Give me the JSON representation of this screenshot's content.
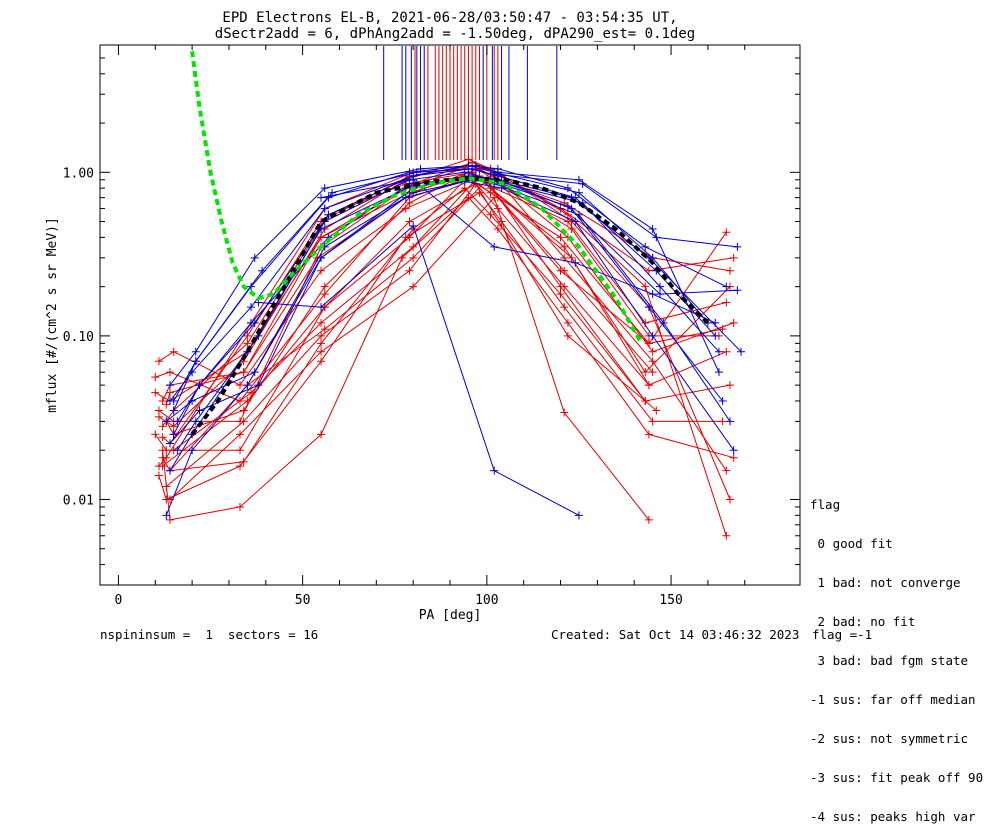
{
  "chart_data": {
    "type": "line",
    "title": "EPD Electrons EL-B, 2021-06-28/03:50:47 - 03:54:35 UT,",
    "subtitle": "dSectr2add = 6, dPhAng2add = -1.50deg, dPA290_est=   0.1deg",
    "xlabel": "PA [deg]",
    "ylabel": "mflux [#/(cm^2 s sr MeV)]",
    "xlim": [
      -5,
      185
    ],
    "ylim": [
      0.003,
      6.0
    ],
    "yscale": "log",
    "xticks": [
      0,
      50,
      100,
      150
    ],
    "yticks": [
      {
        "v": 0.01,
        "label": "0.01"
      },
      {
        "v": 0.1,
        "label": "0.10"
      },
      {
        "v": 1.0,
        "label": "1.00"
      }
    ],
    "colors": {
      "red": "#e60000",
      "blue": "#0000cc",
      "green": "#00e600",
      "black": "#000000"
    },
    "blue_series": [
      {
        "x": [
          14,
          20,
          36,
          56,
          80,
          95,
          102,
          125,
          145,
          160
        ],
        "y": [
          0.04,
          0.06,
          0.15,
          0.6,
          0.95,
          1.1,
          1.0,
          0.75,
          0.3,
          0.12
        ]
      },
      {
        "x": [
          15,
          22,
          37,
          57,
          80,
          96,
          103,
          124,
          146,
          162
        ],
        "y": [
          0.025,
          0.05,
          0.12,
          0.55,
          0.95,
          1.05,
          0.95,
          0.7,
          0.25,
          0.1
        ]
      },
      {
        "x": [
          16,
          21,
          38,
          56,
          79,
          94,
          101,
          126,
          147,
          163
        ],
        "y": [
          0.02,
          0.03,
          0.1,
          0.5,
          0.9,
          1.0,
          0.9,
          0.65,
          0.2,
          0.08
        ]
      },
      {
        "x": [
          14,
          20,
          35,
          55,
          81,
          97,
          104,
          123,
          144,
          164
        ],
        "y": [
          0.015,
          0.025,
          0.08,
          0.45,
          0.85,
          0.95,
          0.88,
          0.6,
          0.15,
          0.04
        ]
      },
      {
        "x": [
          15,
          21,
          36,
          57,
          79,
          95,
          103,
          122,
          143,
          165
        ],
        "y": [
          0.035,
          0.07,
          0.2,
          0.7,
          1.0,
          1.1,
          1.05,
          0.8,
          0.35,
          0.2
        ]
      },
      {
        "x": [
          13,
          20,
          37,
          56,
          80,
          96,
          102,
          125,
          148,
          166
        ],
        "y": [
          0.03,
          0.04,
          0.06,
          0.35,
          0.75,
          0.9,
          0.85,
          0.55,
          0.12,
          0.03
        ]
      },
      {
        "x": [
          14,
          22,
          38,
          55,
          78,
          94,
          104,
          124,
          145,
          167
        ],
        "y": [
          0.022,
          0.035,
          0.05,
          0.3,
          0.7,
          0.88,
          0.8,
          0.5,
          0.1,
          0.02
        ]
      },
      {
        "x": [
          15,
          21,
          39,
          58,
          81,
          95,
          101,
          126,
          146,
          168
        ],
        "y": [
          0.04,
          0.07,
          0.25,
          0.75,
          1.0,
          1.05,
          0.98,
          0.85,
          0.4,
          0.35
        ]
      },
      {
        "x": [
          13,
          20,
          35,
          55,
          80,
          95,
          103,
          123,
          144,
          169
        ],
        "y": [
          0.008,
          0.02,
          0.05,
          0.3,
          0.8,
          0.95,
          0.9,
          0.7,
          0.3,
          0.08
        ]
      },
      {
        "x": [
          16,
          22,
          36,
          57,
          79,
          96,
          102,
          122,
          147,
          168
        ],
        "y": [
          0.03,
          0.05,
          0.12,
          0.4,
          0.85,
          0.92,
          0.88,
          0.62,
          0.18,
          0.19
        ]
      },
      {
        "x": [
          14,
          21,
          37,
          56,
          82,
          97,
          103,
          125,
          145,
          163
        ],
        "y": [
          0.05,
          0.08,
          0.3,
          0.8,
          1.05,
          1.1,
          1.0,
          0.9,
          0.45,
          0.06
        ]
      },
      {
        "x": [
          38,
          55,
          80,
          102,
          125
        ],
        "y": [
          0.16,
          0.15,
          0.47,
          0.015,
          0.008
        ]
      },
      {
        "x": [
          55,
          80,
          102,
          124,
          145,
          162
        ],
        "y": [
          0.7,
          0.9,
          0.35,
          0.28,
          0.18,
          0.12
        ]
      }
    ],
    "red_series": [
      {
        "x": [
          11,
          15,
          33,
          55,
          78,
          96,
          103,
          120,
          144,
          165
        ],
        "y": [
          0.07,
          0.08,
          0.05,
          0.25,
          0.6,
          0.9,
          0.7,
          0.25,
          0.09,
          0.43
        ]
      },
      {
        "x": [
          10,
          14,
          33,
          56,
          79,
          97,
          101,
          121,
          143,
          166
        ],
        "y": [
          0.056,
          0.06,
          0.04,
          0.18,
          0.7,
          0.95,
          0.8,
          0.35,
          0.06,
          0.2
        ]
      },
      {
        "x": [
          12,
          14,
          34,
          54,
          80,
          95,
          104,
          122,
          145,
          167
        ],
        "y": [
          0.04,
          0.05,
          0.06,
          0.3,
          0.75,
          1.0,
          0.85,
          0.4,
          0.08,
          0.12
        ]
      },
      {
        "x": [
          11,
          15,
          33,
          55,
          78,
          96,
          102,
          123,
          144,
          163
        ],
        "y": [
          0.035,
          0.03,
          0.03,
          0.35,
          0.8,
          1.1,
          0.9,
          0.45,
          0.1,
          0.1
        ]
      },
      {
        "x": [
          10,
          13,
          33,
          56,
          79,
          97,
          103,
          121,
          144,
          165
        ],
        "y": [
          0.025,
          0.02,
          0.02,
          0.15,
          0.5,
          0.85,
          0.6,
          0.2,
          0.05,
          0.08
        ]
      },
      {
        "x": [
          12,
          14,
          34,
          55,
          80,
          94,
          101,
          120,
          143,
          166
        ],
        "y": [
          0.018,
          0.015,
          0.017,
          0.09,
          0.45,
          0.8,
          0.55,
          0.18,
          0.04,
          0.05
        ]
      },
      {
        "x": [
          11,
          13,
          33,
          55,
          78,
          98,
          104,
          121,
          145,
          164
        ],
        "y": [
          0.014,
          0.01,
          0.016,
          0.07,
          0.4,
          0.75,
          0.5,
          0.15,
          0.03,
          0.03
        ]
      },
      {
        "x": [
          12,
          14,
          33,
          55,
          77,
          95,
          103,
          122,
          144,
          167
        ],
        "y": [
          0.02,
          0.0075,
          0.009,
          0.025,
          0.3,
          0.7,
          0.45,
          0.12,
          0.025,
          0.018
        ]
      },
      {
        "x": [
          13,
          15,
          34,
          56,
          79,
          97,
          102,
          121,
          145,
          165
        ],
        "y": [
          0.03,
          0.025,
          0.035,
          0.2,
          0.65,
          1.05,
          0.95,
          0.3,
          0.07,
          0.015
        ]
      },
      {
        "x": [
          10,
          14,
          35,
          55,
          80,
          96,
          103,
          123,
          144,
          166
        ],
        "y": [
          0.045,
          0.04,
          0.08,
          0.4,
          0.85,
          1.15,
          1.0,
          0.5,
          0.15,
          0.01
        ]
      },
      {
        "x": [
          11,
          15,
          34,
          56,
          78,
          95,
          101,
          122,
          143,
          165
        ],
        "y": [
          0.032,
          0.028,
          0.07,
          0.45,
          0.9,
          1.2,
          1.05,
          0.55,
          0.2,
          0.006
        ]
      },
      {
        "x": [
          12,
          14,
          35,
          55,
          79,
          97,
          104,
          120,
          144,
          167
        ],
        "y": [
          0.024,
          0.022,
          0.1,
          0.5,
          0.95,
          1.1,
          0.95,
          0.6,
          0.25,
          0.3
        ]
      },
      {
        "x": [
          11,
          13,
          36,
          56,
          80,
          98,
          103,
          121,
          145,
          166
        ],
        "y": [
          0.016,
          0.018,
          0.12,
          0.6,
          1.0,
          1.05,
          0.9,
          0.65,
          0.3,
          0.25
        ]
      },
      {
        "x": [
          12,
          15,
          35,
          57,
          78,
          96,
          102,
          122,
          143,
          165
        ],
        "y": [
          0.028,
          0.035,
          0.09,
          0.55,
          0.85,
          1.0,
          0.8,
          0.5,
          0.12,
          0.16
        ]
      },
      {
        "x": [
          13,
          14,
          34,
          55,
          79,
          94,
          101,
          120,
          144,
          164
        ],
        "y": [
          0.038,
          0.045,
          0.06,
          0.4,
          0.75,
          0.95,
          0.75,
          0.4,
          0.09,
          0.11
        ]
      },
      {
        "x": [
          14,
          33,
          55,
          80,
          102,
          121,
          144
        ],
        "y": [
          0.01,
          0.025,
          0.08,
          0.2,
          0.7,
          0.034,
          0.0075
        ]
      },
      {
        "x": [
          14,
          35,
          56,
          80,
          100,
          120,
          143
        ],
        "y": [
          0.015,
          0.05,
          0.11,
          0.3,
          0.9,
          0.2,
          0.04
        ]
      },
      {
        "x": [
          13,
          34,
          55,
          79,
          97,
          122,
          146
        ],
        "y": [
          0.012,
          0.03,
          0.1,
          0.25,
          0.85,
          0.1,
          0.035
        ]
      },
      {
        "x": [
          15,
          36,
          55,
          80,
          98,
          121,
          145
        ],
        "y": [
          0.02,
          0.045,
          0.12,
          0.35,
          0.95,
          0.25,
          0.06
        ]
      },
      {
        "x": [
          12,
          35,
          56,
          79,
          96,
          123,
          144
        ],
        "y": [
          0.016,
          0.04,
          0.15,
          0.4,
          1.0,
          0.3,
          0.05
        ]
      }
    ],
    "black_dashed": {
      "x": [
        20,
        27,
        35,
        45,
        55,
        70,
        85,
        95,
        105,
        115,
        125,
        135,
        145,
        152,
        160
      ],
      "y": [
        0.025,
        0.04,
        0.08,
        0.2,
        0.5,
        0.75,
        0.88,
        0.92,
        0.9,
        0.8,
        0.65,
        0.45,
        0.28,
        0.18,
        0.12
      ]
    },
    "green_dashed": {
      "x": [
        20,
        22,
        25,
        28,
        31,
        34,
        38,
        42,
        48,
        55,
        65,
        75,
        85,
        95,
        105,
        115,
        125,
        135,
        142
      ],
      "y": [
        5.5,
        2.5,
        1.0,
        0.5,
        0.28,
        0.2,
        0.17,
        0.18,
        0.25,
        0.35,
        0.55,
        0.72,
        0.85,
        0.92,
        0.85,
        0.6,
        0.35,
        0.17,
        0.09
      ]
    },
    "vlines_blue": [
      72,
      77,
      78,
      79.5,
      81,
      82,
      83,
      99,
      101.5,
      104,
      106,
      111,
      119
    ],
    "vlines_red": [
      80.5,
      84,
      86,
      87,
      88,
      89,
      90,
      91,
      92,
      93,
      94,
      95,
      96,
      97,
      98,
      100,
      102,
      103
    ]
  },
  "legend": {
    "title": "flag",
    "items": [
      " 0 good fit",
      " 1 bad: not converge",
      " 2 bad: no fit",
      " 3 bad: bad fgm state",
      "-1 sus: far off median",
      "-2 sus: not symmetric",
      "-3 sus: fit peak off 90",
      "-4 sus: peaks high var"
    ]
  },
  "footer": {
    "left": "nspininsum =  1  sectors = 16",
    "created": "Created: Sat Oct 14 03:46:32 2023",
    "flag": "flag =-1"
  }
}
